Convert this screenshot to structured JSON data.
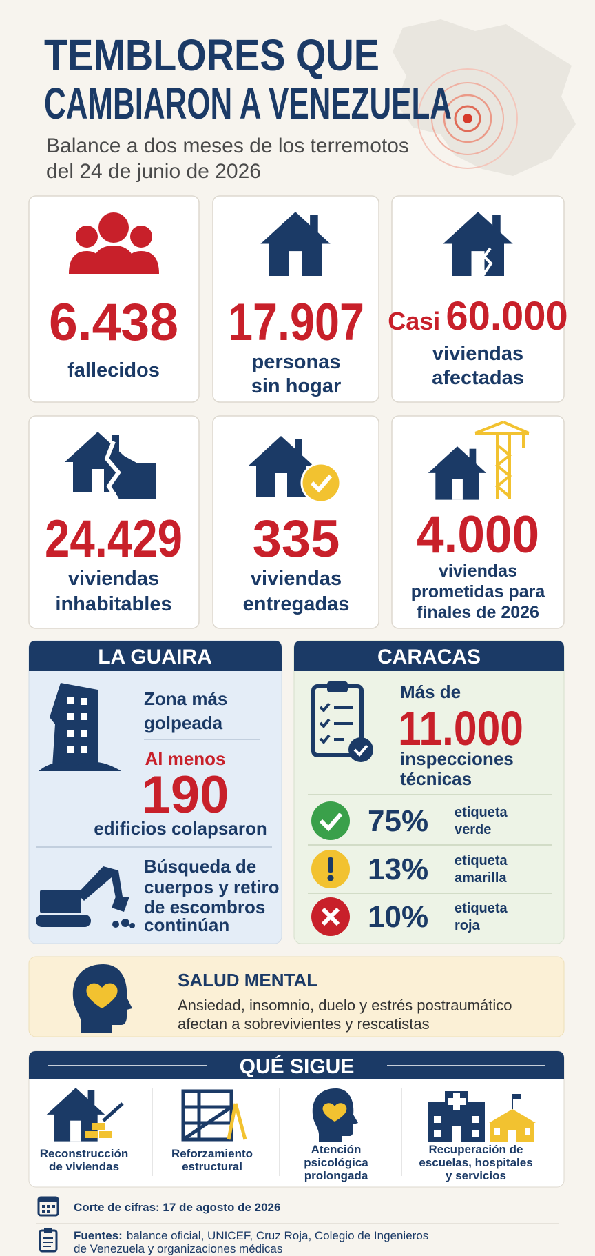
{
  "header": {
    "title": [
      "TEMBLORES QUE",
      "CAMBIARON A VENEZUELA"
    ],
    "subtitle": [
      "Balance a dos meses de los terremotos",
      "del 24 de junio de 2026"
    ]
  },
  "stats": [
    {
      "number": "6.438",
      "label": [
        "fallecidos"
      ]
    },
    {
      "number": "17.907",
      "label": [
        "personas",
        "sin hogar"
      ]
    },
    {
      "prefix": "Casi",
      "number": "60.000",
      "label": [
        "viviendas",
        "afectadas"
      ]
    },
    {
      "number": "24.429",
      "label": [
        "viviendas",
        "inhabitables"
      ]
    },
    {
      "number": "335",
      "label": [
        "viviendas",
        "entregadas"
      ]
    },
    {
      "number": "4.000",
      "label": [
        "viviendas",
        "prometidas para",
        "finales de 2026"
      ]
    }
  ],
  "la_guaira": {
    "title": "LA GUAIRA",
    "zone": [
      "Zona más",
      "golpeada"
    ],
    "prefix": "Al menos",
    "number": "190",
    "label": "edificios colapsaron",
    "search": [
      "Búsqueda de",
      "cuerpos y retiro",
      "de escombros",
      "continúan"
    ]
  },
  "caracas": {
    "title": "CARACAS",
    "prefix": "Más de",
    "number": "11.000",
    "label": [
      "inspecciones",
      "técnicas"
    ],
    "tags": [
      {
        "percent": "75%",
        "label": [
          "etiqueta",
          "verde"
        ]
      },
      {
        "percent": "13%",
        "label": [
          "etiqueta",
          "amarilla"
        ]
      },
      {
        "percent": "10%",
        "label": [
          "etiqueta",
          "roja"
        ]
      }
    ]
  },
  "salud_mental": {
    "title": "SALUD MENTAL",
    "text": [
      "Ansiedad, insomnio, duelo y estrés postraumático",
      "afectan a sobrevivientes y rescatistas"
    ]
  },
  "que_sigue": {
    "title": "QUÉ SIGUE",
    "items": [
      [
        "Reconstrucción",
        "de viviendas"
      ],
      [
        "Reforzamiento",
        "estructural"
      ],
      [
        "Atención",
        "psicológica",
        "prolongada"
      ],
      [
        "Recuperación de",
        "escuelas, hospitales",
        "y servicios"
      ]
    ]
  },
  "footer": {
    "corte": "Corte de cifras: 17 de agosto de 2026",
    "fuentes_label": "Fuentes:",
    "fuentes": [
      "balance oficial, UNICEF, Cruz Roja, Colegio de Ingenieros",
      "de Venezuela y organizaciones médicas"
    ]
  }
}
